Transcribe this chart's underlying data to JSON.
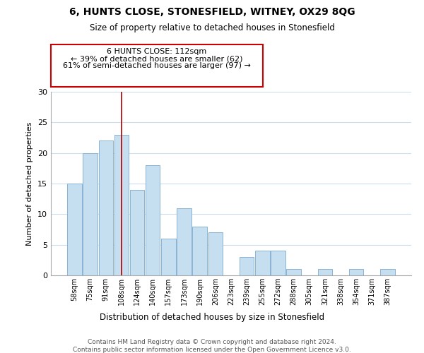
{
  "title": "6, HUNTS CLOSE, STONESFIELD, WITNEY, OX29 8QG",
  "subtitle": "Size of property relative to detached houses in Stonesfield",
  "xlabel": "Distribution of detached houses by size in Stonesfield",
  "ylabel": "Number of detached properties",
  "categories": [
    "58sqm",
    "75sqm",
    "91sqm",
    "108sqm",
    "124sqm",
    "140sqm",
    "157sqm",
    "173sqm",
    "190sqm",
    "206sqm",
    "223sqm",
    "239sqm",
    "255sqm",
    "272sqm",
    "288sqm",
    "305sqm",
    "321sqm",
    "338sqm",
    "354sqm",
    "371sqm",
    "387sqm"
  ],
  "values": [
    15,
    20,
    22,
    23,
    14,
    18,
    6,
    11,
    8,
    7,
    0,
    3,
    4,
    4,
    1,
    0,
    1,
    0,
    1,
    0,
    1
  ],
  "bar_color": "#c6dff0",
  "bar_edge_color": "#8ab4d4",
  "marker_index": 3,
  "marker_color": "#aa0000",
  "ylim": [
    0,
    30
  ],
  "yticks": [
    0,
    5,
    10,
    15,
    20,
    25,
    30
  ],
  "annotation_line1": "6 HUNTS CLOSE: 112sqm",
  "annotation_line2": "← 39% of detached houses are smaller (62)",
  "annotation_line3": "61% of semi-detached houses are larger (97) →",
  "annotation_box_color": "#ffffff",
  "annotation_box_edge": "#cc0000",
  "footer_line1": "Contains HM Land Registry data © Crown copyright and database right 2024.",
  "footer_line2": "Contains public sector information licensed under the Open Government Licence v3.0.",
  "background_color": "#ffffff",
  "grid_color": "#ccdded"
}
